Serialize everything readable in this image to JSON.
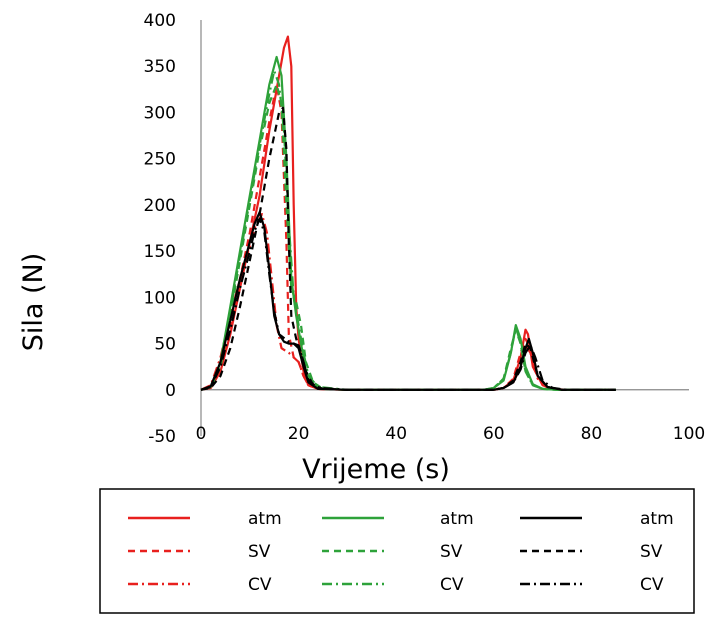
{
  "chart_data": {
    "type": "line",
    "title": "",
    "xlabel": "Vrijeme (s)",
    "ylabel": "Sila (N)",
    "xlim": [
      0,
      100
    ],
    "ylim": [
      -50,
      400
    ],
    "xticks": [
      0,
      20,
      40,
      60,
      80,
      100
    ],
    "yticks": [
      -50,
      0,
      50,
      100,
      150,
      200,
      250,
      300,
      350,
      400
    ],
    "grid": false,
    "legend_position": "bottom",
    "series": [
      {
        "name": "atm",
        "color": "#e8201e",
        "dash": "solid",
        "points": [
          [
            0,
            0
          ],
          [
            2,
            2
          ],
          [
            4,
            20
          ],
          [
            6,
            60
          ],
          [
            8,
            110
          ],
          [
            10,
            160
          ],
          [
            12,
            210
          ],
          [
            14,
            280
          ],
          [
            16,
            340
          ],
          [
            17,
            370
          ],
          [
            17.8,
            382
          ],
          [
            18.5,
            350
          ],
          [
            19,
            200
          ],
          [
            19.5,
            90
          ],
          [
            20,
            55
          ],
          [
            21,
            20
          ],
          [
            22,
            5
          ],
          [
            24,
            1
          ],
          [
            30,
            0
          ],
          [
            60,
            0
          ],
          [
            62,
            2
          ],
          [
            64,
            10
          ],
          [
            65.5,
            35
          ],
          [
            66.5,
            65
          ],
          [
            67,
            60
          ],
          [
            68,
            25
          ],
          [
            70,
            5
          ],
          [
            72,
            1
          ],
          [
            75,
            0
          ],
          [
            85,
            0
          ]
        ]
      },
      {
        "name": "SV",
        "color": "#e8201e",
        "dash": "dash",
        "points": [
          [
            0,
            0
          ],
          [
            2,
            3
          ],
          [
            4,
            25
          ],
          [
            6,
            70
          ],
          [
            8,
            120
          ],
          [
            10,
            170
          ],
          [
            12,
            230
          ],
          [
            14,
            290
          ],
          [
            15.5,
            330
          ],
          [
            16.5,
            300
          ],
          [
            17.5,
            160
          ],
          [
            18,
            60
          ],
          [
            19,
            35
          ],
          [
            20,
            30
          ],
          [
            21,
            15
          ],
          [
            22,
            5
          ],
          [
            24,
            1
          ],
          [
            30,
            0
          ],
          [
            60,
            0
          ],
          [
            62,
            2
          ],
          [
            64,
            12
          ],
          [
            65.5,
            40
          ],
          [
            66.5,
            55
          ],
          [
            67.5,
            45
          ],
          [
            69,
            15
          ],
          [
            71,
            3
          ],
          [
            74,
            0
          ],
          [
            85,
            0
          ]
        ]
      },
      {
        "name": "CV",
        "color": "#e8201e",
        "dash": "dashdot",
        "points": [
          [
            0,
            0
          ],
          [
            2,
            5
          ],
          [
            4,
            35
          ],
          [
            6,
            80
          ],
          [
            8,
            120
          ],
          [
            10,
            155
          ],
          [
            11,
            175
          ],
          [
            12.5,
            190
          ],
          [
            13.5,
            170
          ],
          [
            14.5,
            120
          ],
          [
            15.5,
            70
          ],
          [
            16.5,
            45
          ],
          [
            18,
            40
          ],
          [
            20,
            30
          ],
          [
            21,
            15
          ],
          [
            22,
            5
          ],
          [
            24,
            1
          ],
          [
            30,
            0
          ],
          [
            60,
            0
          ],
          [
            62,
            2
          ],
          [
            64,
            8
          ],
          [
            65.5,
            25
          ],
          [
            66.5,
            48
          ],
          [
            67.5,
            40
          ],
          [
            69,
            12
          ],
          [
            71,
            2
          ],
          [
            74,
            0
          ],
          [
            85,
            0
          ]
        ]
      },
      {
        "name": "atm",
        "color": "#2ea23a",
        "dash": "solid",
        "points": [
          [
            0,
            0
          ],
          [
            2,
            3
          ],
          [
            4,
            30
          ],
          [
            6,
            90
          ],
          [
            8,
            150
          ],
          [
            10,
            210
          ],
          [
            12,
            270
          ],
          [
            14,
            330
          ],
          [
            15.5,
            360
          ],
          [
            16.5,
            340
          ],
          [
            17.5,
            250
          ],
          [
            18.5,
            120
          ],
          [
            19.5,
            80
          ],
          [
            20.5,
            50
          ],
          [
            21.5,
            20
          ],
          [
            23,
            5
          ],
          [
            25,
            1
          ],
          [
            30,
            0
          ],
          [
            58,
            0
          ],
          [
            60,
            2
          ],
          [
            62,
            10
          ],
          [
            63.5,
            40
          ],
          [
            64.5,
            70
          ],
          [
            65.5,
            55
          ],
          [
            66.5,
            25
          ],
          [
            68,
            6
          ],
          [
            70,
            1
          ],
          [
            73,
            0
          ],
          [
            85,
            0
          ]
        ]
      },
      {
        "name": "SV",
        "color": "#2ea23a",
        "dash": "dash",
        "points": [
          [
            0,
            0
          ],
          [
            2,
            3
          ],
          [
            4,
            25
          ],
          [
            6,
            80
          ],
          [
            8,
            140
          ],
          [
            10,
            200
          ],
          [
            12,
            260
          ],
          [
            14,
            310
          ],
          [
            15.5,
            330
          ],
          [
            16.5,
            310
          ],
          [
            17.5,
            200
          ],
          [
            18.5,
            110
          ],
          [
            19.5,
            95
          ],
          [
            20.5,
            70
          ],
          [
            21.5,
            30
          ],
          [
            23,
            8
          ],
          [
            25,
            1
          ],
          [
            30,
            0
          ],
          [
            58,
            0
          ],
          [
            60,
            2
          ],
          [
            62,
            12
          ],
          [
            63.5,
            45
          ],
          [
            64.5,
            65
          ],
          [
            65.5,
            50
          ],
          [
            66.5,
            20
          ],
          [
            68,
            5
          ],
          [
            70,
            1
          ],
          [
            73,
            0
          ],
          [
            85,
            0
          ]
        ]
      },
      {
        "name": "CV",
        "color": "#2ea23a",
        "dash": "dashdot",
        "points": [
          [
            0,
            0
          ],
          [
            2,
            3
          ],
          [
            4,
            30
          ],
          [
            6,
            85
          ],
          [
            8,
            145
          ],
          [
            10,
            205
          ],
          [
            12,
            265
          ],
          [
            14,
            320
          ],
          [
            15,
            345
          ],
          [
            16,
            330
          ],
          [
            17,
            280
          ],
          [
            18,
            180
          ],
          [
            19,
            100
          ],
          [
            20,
            70
          ],
          [
            21,
            40
          ],
          [
            22,
            15
          ],
          [
            24,
            3
          ],
          [
            30,
            0
          ],
          [
            58,
            0
          ],
          [
            60,
            2
          ],
          [
            62,
            12
          ],
          [
            63.5,
            40
          ],
          [
            64.5,
            68
          ],
          [
            65.5,
            50
          ],
          [
            66.5,
            20
          ],
          [
            68,
            5
          ],
          [
            70,
            1
          ],
          [
            73,
            0
          ],
          [
            85,
            0
          ]
        ]
      },
      {
        "name": "atm",
        "color": "#000000",
        "dash": "solid",
        "points": [
          [
            0,
            0
          ],
          [
            2,
            4
          ],
          [
            4,
            30
          ],
          [
            6,
            75
          ],
          [
            8,
            120
          ],
          [
            10,
            160
          ],
          [
            11,
            180
          ],
          [
            12,
            192
          ],
          [
            13,
            175
          ],
          [
            14,
            130
          ],
          [
            15,
            80
          ],
          [
            16,
            60
          ],
          [
            17,
            52
          ],
          [
            18,
            50
          ],
          [
            19,
            50
          ],
          [
            20,
            45
          ],
          [
            21,
            25
          ],
          [
            22,
            8
          ],
          [
            24,
            1
          ],
          [
            30,
            0
          ],
          [
            60,
            0
          ],
          [
            62,
            2
          ],
          [
            64,
            8
          ],
          [
            65.5,
            25
          ],
          [
            66.5,
            45
          ],
          [
            67.2,
            55
          ],
          [
            68,
            40
          ],
          [
            69,
            15
          ],
          [
            71,
            3
          ],
          [
            74,
            0
          ],
          [
            85,
            0
          ]
        ]
      },
      {
        "name": "SV",
        "color": "#000000",
        "dash": "dash",
        "points": [
          [
            0,
            0
          ],
          [
            2,
            2
          ],
          [
            4,
            15
          ],
          [
            6,
            45
          ],
          [
            8,
            90
          ],
          [
            10,
            140
          ],
          [
            12,
            190
          ],
          [
            14,
            250
          ],
          [
            16,
            300
          ],
          [
            16.8,
            305
          ],
          [
            17.5,
            260
          ],
          [
            18,
            160
          ],
          [
            18.5,
            80
          ],
          [
            19.5,
            55
          ],
          [
            20.5,
            40
          ],
          [
            21.5,
            20
          ],
          [
            23,
            5
          ],
          [
            25,
            1
          ],
          [
            30,
            0
          ],
          [
            60,
            0
          ],
          [
            62,
            2
          ],
          [
            64,
            10
          ],
          [
            65.5,
            30
          ],
          [
            66.5,
            50
          ],
          [
            67.5,
            45
          ],
          [
            69,
            15
          ],
          [
            71,
            3
          ],
          [
            74,
            0
          ],
          [
            85,
            0
          ]
        ]
      },
      {
        "name": "CV",
        "color": "#000000",
        "dash": "dashdot",
        "points": [
          [
            0,
            0
          ],
          [
            2,
            3
          ],
          [
            4,
            25
          ],
          [
            6,
            65
          ],
          [
            8,
            110
          ],
          [
            10,
            150
          ],
          [
            11,
            172
          ],
          [
            12,
            185
          ],
          [
            13,
            170
          ],
          [
            14,
            125
          ],
          [
            15,
            85
          ],
          [
            16,
            60
          ],
          [
            18,
            52
          ],
          [
            20,
            48
          ],
          [
            21,
            30
          ],
          [
            22,
            10
          ],
          [
            24,
            2
          ],
          [
            30,
            0
          ],
          [
            60,
            0
          ],
          [
            62,
            2
          ],
          [
            64,
            8
          ],
          [
            65.5,
            22
          ],
          [
            66.5,
            40
          ],
          [
            67.5,
            48
          ],
          [
            68.5,
            35
          ],
          [
            70,
            10
          ],
          [
            72,
            2
          ],
          [
            75,
            0
          ],
          [
            85,
            0
          ]
        ]
      }
    ]
  }
}
